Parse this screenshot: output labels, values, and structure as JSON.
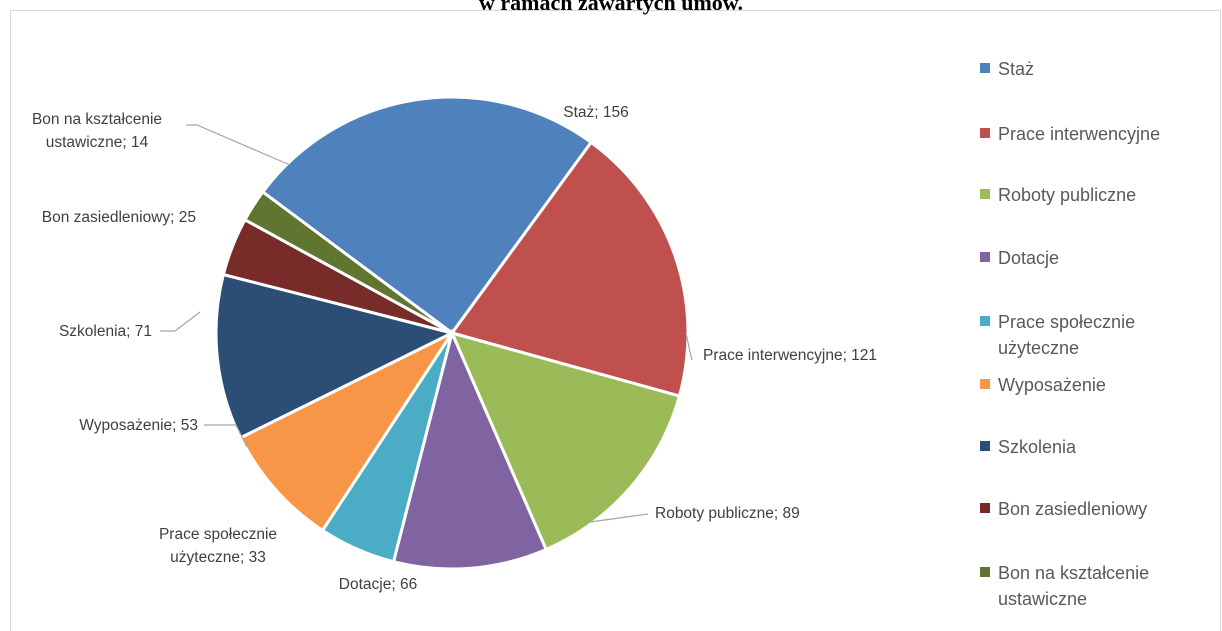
{
  "chart_data": {
    "type": "pie",
    "title": "w ramach zawartych umów.",
    "categories": [
      "Staż",
      "Prace interwencyjne",
      "Roboty publiczne",
      "Dotacje",
      "Prace społecznie użyteczne",
      "Wyposażenie",
      "Szkolenia",
      "Bon zasiedleniowy",
      "Bon na kształcenie ustawiczne"
    ],
    "values": [
      156,
      121,
      89,
      66,
      33,
      53,
      71,
      25,
      14
    ],
    "data_labels": [
      "Staż; 156",
      "Prace interwencyjne; 121",
      "Roboty publiczne; 89",
      "Dotacje; 66",
      "Prace społecznie użyteczne; 33",
      "Wyposażenie; 53",
      "Szkolenia; 71",
      "Bon zasiedleniowy; 25",
      "Bon na kształcenie ustawiczne; 14"
    ],
    "colors": [
      "#4f81bd",
      "#c0504d",
      "#9bbb59",
      "#8064a2",
      "#4bacc6",
      "#f79646",
      "#2c4d75",
      "#772c2a",
      "#5f7530"
    ],
    "legend_position": "right"
  },
  "legend": {
    "items": [
      {
        "label": "Staż"
      },
      {
        "label": "Prace interwencyjne"
      },
      {
        "label": "Roboty publiczne"
      },
      {
        "label": "Dotacje"
      },
      {
        "label": "Prace społecznie użyteczne"
      },
      {
        "label": "Wyposażenie"
      },
      {
        "label": "Szkolenia"
      },
      {
        "label": "Bon zasiedleniowy"
      },
      {
        "label": "Bon na kształcenie ustawiczne"
      }
    ]
  }
}
